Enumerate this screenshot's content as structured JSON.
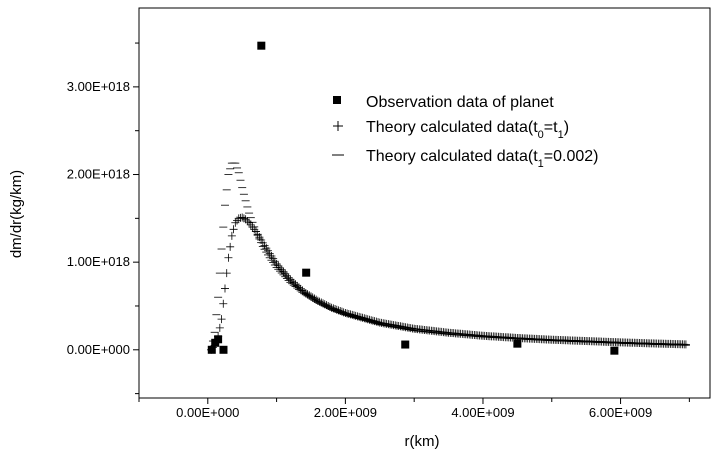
{
  "chart_data": {
    "type": "scatter",
    "title": "",
    "xlabel": "r(km)",
    "ylabel": "dm/dr(kg/km)",
    "xlim": [
      -1000000000.0,
      7300000000.0
    ],
    "ylim": [
      -5.5e+17,
      3.9e+18
    ],
    "x_ticks": [
      0,
      2000000000.0,
      4000000000.0,
      6000000000.0
    ],
    "x_tick_labels": [
      "0.00E+000",
      "2.00E+009",
      "4.00E+009",
      "6.00E+009"
    ],
    "y_ticks": [
      0,
      1e+18,
      2e+18,
      3e+18
    ],
    "y_tick_labels": [
      "0.00E+000",
      "1.00E+018",
      "2.00E+018",
      "3.00E+018"
    ],
    "grid": false,
    "legend_position": "upper-right",
    "series": [
      {
        "name": "Observation data of planet",
        "marker": "square",
        "color": "#000000",
        "points": [
          [
            58000000.0,
            0.0
          ],
          [
            108000000.0,
            8e+16
          ],
          [
            150000000.0,
            1.2e+17
          ],
          [
            228000000.0,
            0.0
          ],
          [
            778000000.0,
            3.47e+18
          ],
          [
            1430000000.0,
            8.8e+17
          ],
          [
            2870000000.0,
            6e+16
          ],
          [
            4500000000.0,
            7e+16
          ],
          [
            5910000000.0,
            -1e+16
          ]
        ]
      },
      {
        "name": "Theory calculated data(t0=t1)",
        "name_parts": {
          "main": "Theory calculated data(t",
          "sub1": "0",
          "eq": "=t",
          "sub2": "1",
          "close": ")"
        },
        "marker": "plus",
        "color": "#000000",
        "points": [
          [
            50000000.0,
            0.0
          ],
          [
            100000000.0,
            5e+16
          ],
          [
            150000000.0,
            1.5e+17
          ],
          [
            200000000.0,
            3.5e+17
          ],
          [
            250000000.0,
            7e+17
          ],
          [
            300000000.0,
            1.05e+18
          ],
          [
            350000000.0,
            1.3e+18
          ],
          [
            400000000.0,
            1.45e+18
          ],
          [
            450000000.0,
            1.5e+18
          ],
          [
            500000000.0,
            1.51e+18
          ],
          [
            550000000.0,
            1.49e+18
          ],
          [
            600000000.0,
            1.45e+18
          ],
          [
            700000000.0,
            1.35e+18
          ],
          [
            800000000.0,
            1.22e+18
          ],
          [
            900000000.0,
            1.1e+18
          ],
          [
            1000000000.0,
            9.8e+17
          ],
          [
            1200000000.0,
            8e+17
          ],
          [
            1400000000.0,
            6.6e+17
          ],
          [
            1600000000.0,
            5.6e+17
          ],
          [
            1800000000.0,
            4.8e+17
          ],
          [
            2000000000.0,
            4.2e+17
          ],
          [
            2500000000.0,
            3.1e+17
          ],
          [
            3000000000.0,
            2.4e+17
          ],
          [
            3500000000.0,
            1.95e+17
          ],
          [
            4000000000.0,
            1.6e+17
          ],
          [
            4500000000.0,
            1.35e+17
          ],
          [
            5000000000.0,
            1.15e+17
          ],
          [
            5500000000.0,
            1e+17
          ],
          [
            6000000000.0,
            8.5e+16
          ],
          [
            6500000000.0,
            7.2e+16
          ],
          [
            6950000000.0,
            6.2e+16
          ]
        ]
      },
      {
        "name": "Theory calculated data(t1=0.002)",
        "name_parts": {
          "main": "Theory calculated data(t",
          "sub1": "1",
          "rest": "=0.002)"
        },
        "marker": "dash",
        "color": "#000000",
        "points": [
          [
            50000000.0,
            0.0
          ],
          [
            100000000.0,
            2e+17
          ],
          [
            150000000.0,
            6e+17
          ],
          [
            200000000.0,
            1.15e+18
          ],
          [
            250000000.0,
            1.65e+18
          ],
          [
            300000000.0,
            2e+18
          ],
          [
            350000000.0,
            2.13e+18
          ],
          [
            400000000.0,
            2.13e+18
          ],
          [
            450000000.0,
            2.02e+18
          ],
          [
            500000000.0,
            1.85e+18
          ],
          [
            550000000.0,
            1.7e+18
          ],
          [
            600000000.0,
            1.56e+18
          ],
          [
            700000000.0,
            1.35e+18
          ],
          [
            800000000.0,
            1.18e+18
          ],
          [
            900000000.0,
            1.05e+18
          ],
          [
            1000000000.0,
            9.4e+17
          ],
          [
            1200000000.0,
            7.7e+17
          ],
          [
            1400000000.0,
            6.4e+17
          ],
          [
            1600000000.0,
            5.4e+17
          ],
          [
            1800000000.0,
            4.6e+17
          ],
          [
            2000000000.0,
            4e+17
          ],
          [
            2500000000.0,
            2.9e+17
          ],
          [
            3000000000.0,
            2.2e+17
          ],
          [
            3500000000.0,
            1.78e+17
          ],
          [
            4000000000.0,
            1.48e+17
          ],
          [
            4500000000.0,
            1.25e+17
          ],
          [
            5000000000.0,
            1.05e+17
          ],
          [
            5500000000.0,
            9e+16
          ],
          [
            6000000000.0,
            7.5e+16
          ],
          [
            6500000000.0,
            6.2e+16
          ],
          [
            6950000000.0,
            5.2e+16
          ]
        ]
      }
    ]
  }
}
